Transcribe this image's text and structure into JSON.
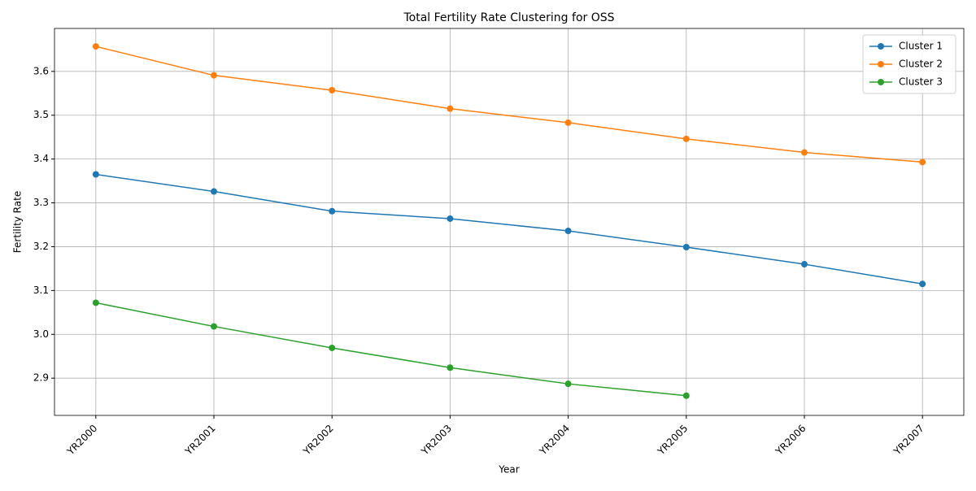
{
  "chart_data": {
    "type": "line",
    "title": "Total Fertility Rate Clustering for OSS",
    "x_label": "Year",
    "y_label": "Fertility Rate",
    "categories": [
      "YR2000",
      "YR2001",
      "YR2002",
      "YR2003",
      "YR2004",
      "YR2005",
      "YR2006",
      "YR2007"
    ],
    "series": [
      {
        "name": "Cluster 1",
        "color": "#1f77b4",
        "values": [
          3.365,
          3.326,
          3.281,
          3.264,
          3.236,
          3.199,
          3.16,
          3.115
        ]
      },
      {
        "name": "Cluster 2",
        "color": "#ff7f0e",
        "values": [
          3.657,
          3.591,
          3.557,
          3.515,
          3.483,
          3.446,
          3.415,
          3.393
        ]
      },
      {
        "name": "Cluster 3",
        "color": "#2ca02c",
        "values": [
          3.072,
          3.018,
          2.969,
          2.924,
          2.887,
          2.86,
          null,
          null
        ]
      }
    ],
    "ylim": [
      2.815,
      3.698
    ],
    "yticks": [
      2.9,
      {
        "value": 3,
        "label": "3.0"
      },
      3.1,
      3.2,
      3.3,
      3.4,
      3.5,
      3.6
    ],
    "grid": true,
    "legend": "upper right"
  }
}
